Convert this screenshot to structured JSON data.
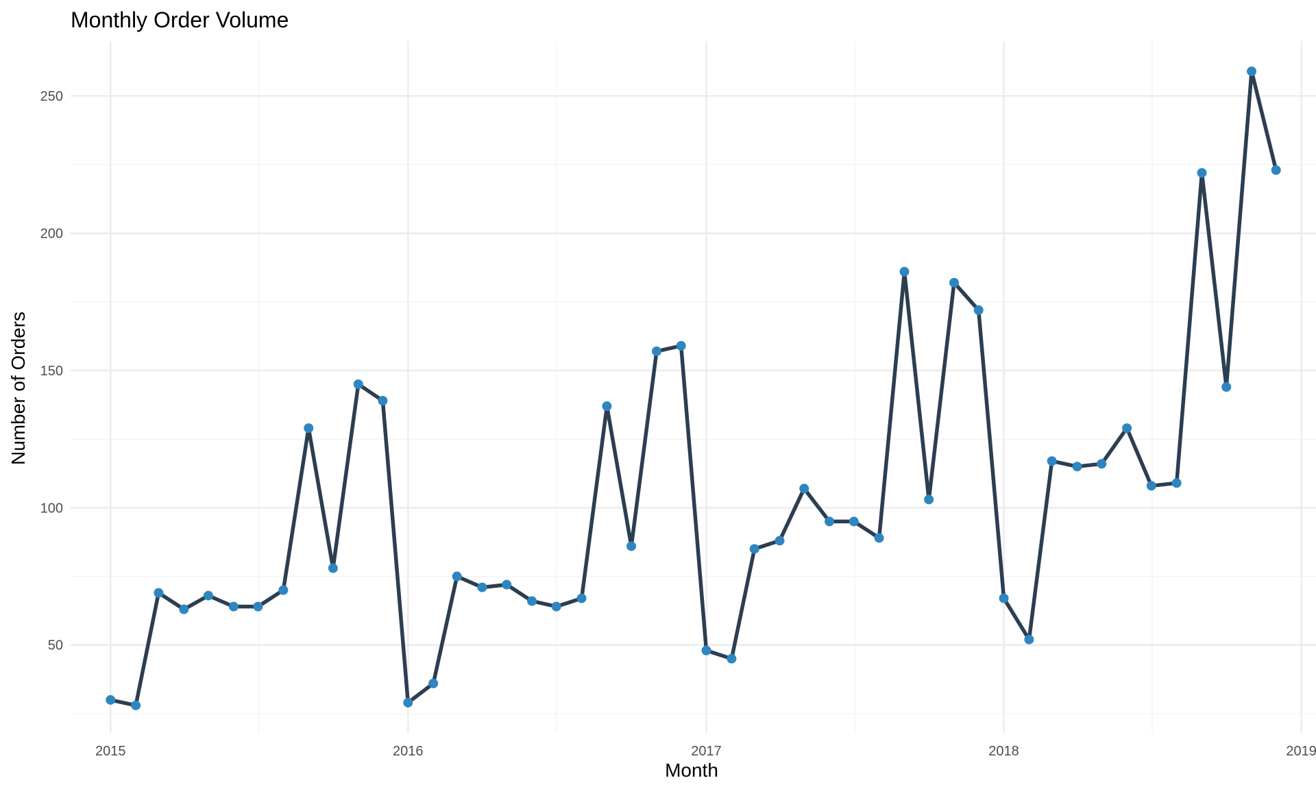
{
  "chart_data": {
    "type": "line",
    "title": "Monthly Order Volume",
    "xlabel": "Month",
    "ylabel": "Number of Orders",
    "x_type": "date",
    "xlim": [
      "2014-11-13",
      "2019-01-19"
    ],
    "ylim": [
      18,
      270
    ],
    "x_ticks": [
      {
        "value": "2015-01-01",
        "label": "2015"
      },
      {
        "value": "2016-01-01",
        "label": "2016"
      },
      {
        "value": "2017-01-01",
        "label": "2017"
      },
      {
        "value": "2018-01-01",
        "label": "2018"
      },
      {
        "value": "2019-01-01",
        "label": "2019"
      }
    ],
    "x_minor_ticks": [
      "2015-07-02",
      "2016-07-01",
      "2017-07-02",
      "2018-07-02"
    ],
    "y_ticks": [
      50,
      100,
      150,
      200,
      250
    ],
    "y_minor_ticks": [
      25,
      75,
      125,
      175,
      225
    ],
    "grid": true,
    "legend": "none",
    "line_color": "#2c3e50",
    "point_color": "#2e86c1",
    "series": [
      {
        "x": [
          "2015-01-01",
          "2015-02-01",
          "2015-03-01",
          "2015-04-01",
          "2015-05-01",
          "2015-06-01",
          "2015-07-01",
          "2015-08-01",
          "2015-09-01",
          "2015-10-01",
          "2015-11-01",
          "2015-12-01",
          "2016-01-01",
          "2016-02-01",
          "2016-03-01",
          "2016-04-01",
          "2016-05-01",
          "2016-06-01",
          "2016-07-01",
          "2016-08-01",
          "2016-09-01",
          "2016-10-01",
          "2016-11-01",
          "2016-12-01",
          "2017-01-01",
          "2017-02-01",
          "2017-03-01",
          "2017-04-01",
          "2017-05-01",
          "2017-06-01",
          "2017-07-01",
          "2017-08-01",
          "2017-09-01",
          "2017-10-01",
          "2017-11-01",
          "2017-12-01",
          "2018-01-01",
          "2018-02-01",
          "2018-03-01",
          "2018-04-01",
          "2018-05-01",
          "2018-06-01",
          "2018-07-01",
          "2018-08-01",
          "2018-09-01",
          "2018-10-01",
          "2018-11-01",
          "2018-12-01"
        ],
        "values": [
          30,
          28,
          69,
          63,
          68,
          64,
          64,
          70,
          129,
          78,
          145,
          139,
          29,
          36,
          75,
          71,
          72,
          66,
          64,
          67,
          137,
          86,
          157,
          159,
          48,
          45,
          85,
          88,
          107,
          95,
          95,
          89,
          186,
          103,
          182,
          172,
          67,
          52,
          117,
          115,
          116,
          129,
          108,
          109,
          222,
          144,
          259,
          223
        ]
      }
    ]
  }
}
